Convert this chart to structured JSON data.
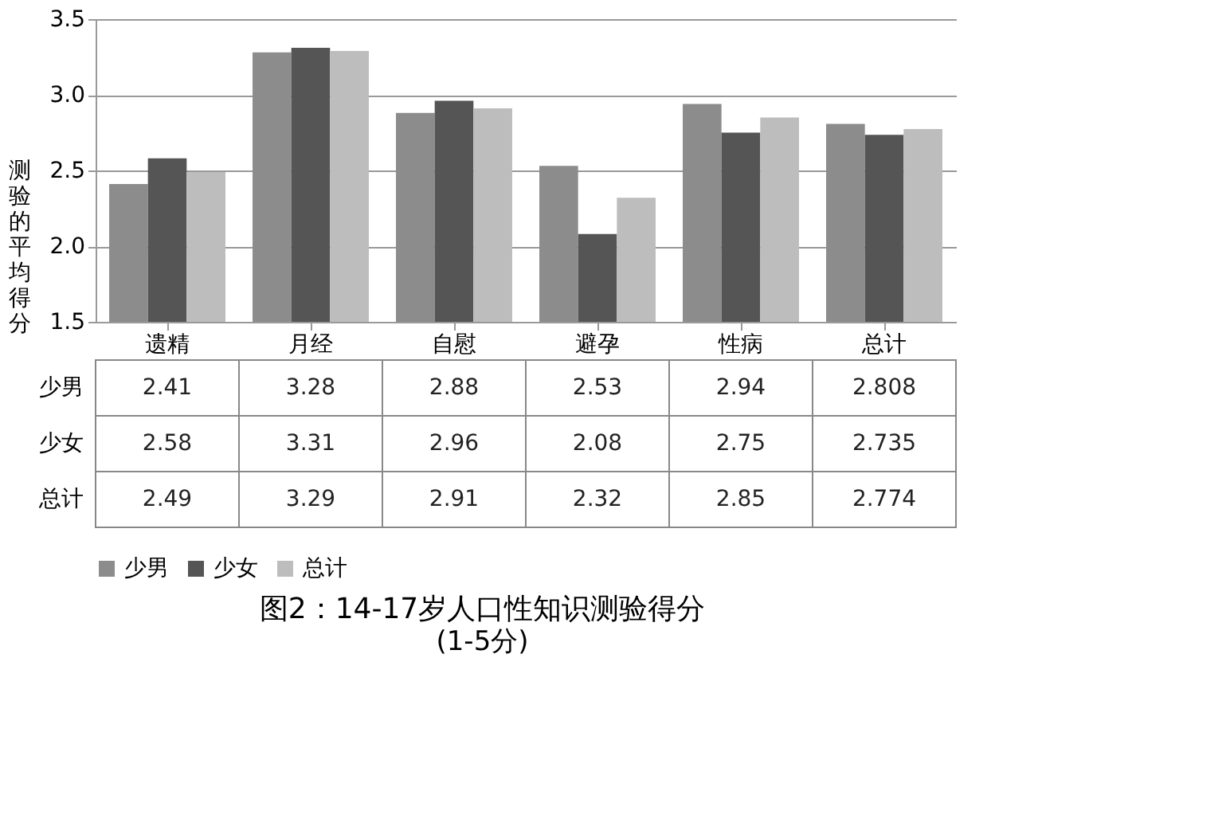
{
  "chart_data": {
    "type": "bar",
    "title": "图2：14-17岁人口性知识测验得分",
    "subtitle": "(1-5分)",
    "ylabel": "测验的平均得分",
    "categories": [
      "遗精",
      "月经",
      "自慰",
      "避孕",
      "性病",
      "总计"
    ],
    "series": [
      {
        "name": "少男",
        "color": "#8c8c8c",
        "values": [
          2.41,
          3.28,
          2.88,
          2.53,
          2.94,
          2.808
        ]
      },
      {
        "name": "少女",
        "color": "#555555",
        "values": [
          2.58,
          3.31,
          2.96,
          2.08,
          2.75,
          2.735
        ]
      },
      {
        "name": "总计",
        "color": "#bdbdbd",
        "values": [
          2.49,
          3.29,
          2.91,
          2.32,
          2.85,
          2.774
        ]
      }
    ],
    "ylim": [
      1.5,
      3.5
    ],
    "yticks": [
      1.5,
      {
        "value": 2,
        "label": "2.0"
      },
      2.5,
      {
        "value": 3,
        "label": "3.0"
      },
      3.5
    ],
    "grid": "y",
    "legend": "bottom",
    "data_labels": true
  }
}
